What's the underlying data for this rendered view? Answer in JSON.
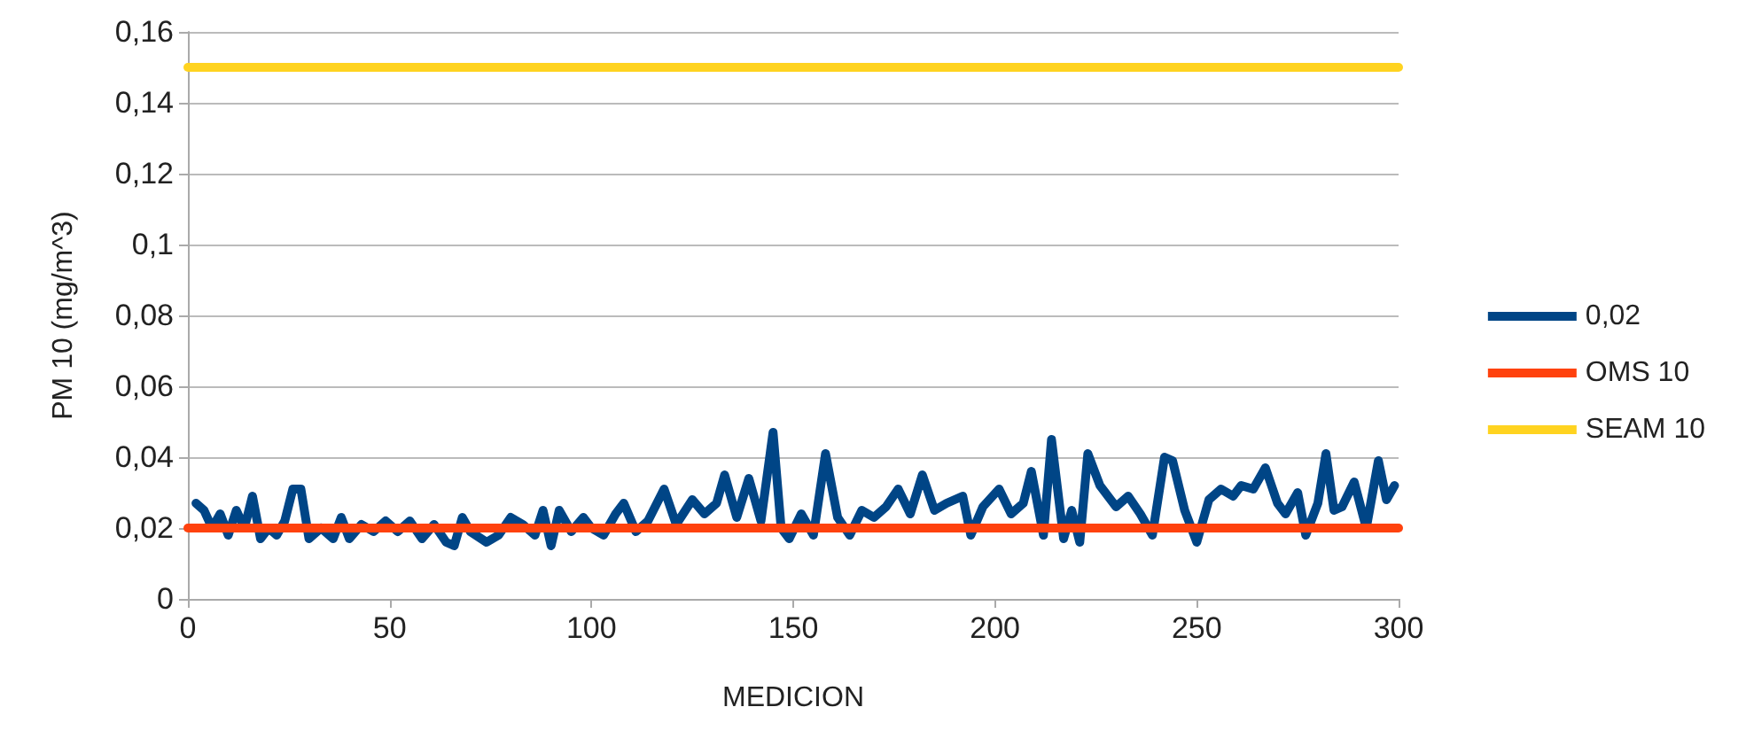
{
  "chart_data": {
    "type": "line",
    "xlabel": "MEDICION",
    "ylabel": "PM 10 (mg/m^3)",
    "xlim": [
      0,
      300
    ],
    "xticks": [
      0,
      50,
      100,
      150,
      200,
      250,
      300
    ],
    "ylim": [
      0,
      0.16
    ],
    "yticks": [
      {
        "value": 0,
        "label": "0"
      },
      {
        "value": 0.02,
        "label": "0,02"
      },
      {
        "value": 0.04,
        "label": "0,04"
      },
      {
        "value": 0.06,
        "label": "0,06"
      },
      {
        "value": 0.08,
        "label": "0,08"
      },
      {
        "value": 0.1,
        "label": "0,1"
      },
      {
        "value": 0.12,
        "label": "0,12"
      },
      {
        "value": 0.14,
        "label": "0,14"
      },
      {
        "value": 0.16,
        "label": "0,16"
      }
    ],
    "grid": "y",
    "legend": "right",
    "marker": "none",
    "line_style": "solid",
    "series": [
      {
        "name": "0,02",
        "color": "#004586",
        "x": [
          2,
          4,
          6,
          8,
          10,
          12,
          14,
          16,
          18,
          20,
          22,
          24,
          26,
          28,
          30,
          33,
          36,
          38,
          40,
          43,
          46,
          49,
          52,
          55,
          58,
          61,
          64,
          66,
          68,
          70,
          74,
          77,
          80,
          83,
          86,
          88,
          90,
          92,
          95,
          98,
          100,
          103,
          106,
          108,
          111,
          114,
          118,
          121,
          125,
          128,
          131,
          133,
          136,
          139,
          142,
          145,
          147,
          149,
          152,
          155,
          158,
          161,
          164,
          167,
          170,
          173,
          176,
          179,
          182,
          185,
          188,
          192,
          194,
          197,
          201,
          204,
          207,
          209,
          212,
          214,
          217,
          219,
          221,
          223,
          226,
          230,
          233,
          236,
          239,
          242,
          244,
          247,
          250,
          253,
          256,
          259,
          261,
          264,
          267,
          270,
          272,
          275,
          277,
          280,
          282,
          284,
          286,
          289,
          292,
          295,
          297,
          299
        ],
        "values": [
          0.027,
          0.025,
          0.02,
          0.024,
          0.018,
          0.025,
          0.02,
          0.029,
          0.017,
          0.02,
          0.018,
          0.022,
          0.031,
          0.031,
          0.017,
          0.02,
          0.017,
          0.023,
          0.017,
          0.021,
          0.019,
          0.022,
          0.019,
          0.022,
          0.017,
          0.021,
          0.016,
          0.015,
          0.023,
          0.019,
          0.016,
          0.018,
          0.023,
          0.021,
          0.018,
          0.025,
          0.015,
          0.025,
          0.019,
          0.023,
          0.02,
          0.018,
          0.024,
          0.027,
          0.019,
          0.022,
          0.031,
          0.021,
          0.028,
          0.024,
          0.027,
          0.035,
          0.023,
          0.034,
          0.022,
          0.047,
          0.02,
          0.017,
          0.024,
          0.018,
          0.041,
          0.023,
          0.018,
          0.025,
          0.023,
          0.026,
          0.031,
          0.024,
          0.035,
          0.025,
          0.027,
          0.029,
          0.018,
          0.026,
          0.031,
          0.024,
          0.027,
          0.036,
          0.018,
          0.045,
          0.017,
          0.025,
          0.016,
          0.041,
          0.032,
          0.026,
          0.029,
          0.024,
          0.018,
          0.04,
          0.039,
          0.025,
          0.016,
          0.028,
          0.031,
          0.029,
          0.032,
          0.031,
          0.037,
          0.027,
          0.024,
          0.03,
          0.018,
          0.027,
          0.041,
          0.025,
          0.026,
          0.033,
          0.02,
          0.039,
          0.028,
          0.032
        ]
      },
      {
        "name": "OMS 10",
        "color": "#ff420e",
        "x": [
          0,
          300
        ],
        "values": [
          0.02,
          0.02
        ]
      },
      {
        "name": "SEAM 10",
        "color": "#ffd320",
        "x": [
          0,
          300
        ],
        "values": [
          0.15,
          0.15
        ]
      }
    ]
  }
}
